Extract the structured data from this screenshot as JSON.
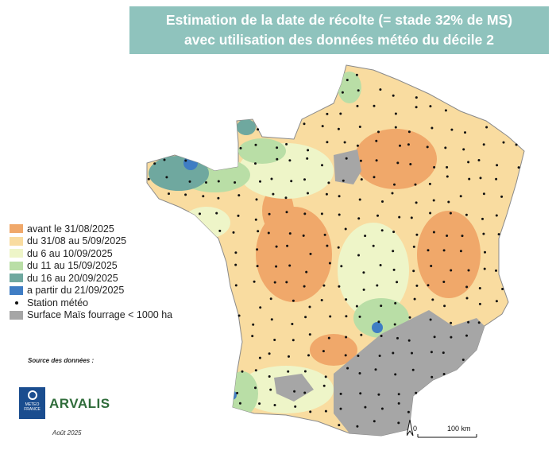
{
  "title": {
    "line1": "Estimation de la date de récolte (= stade 32% de MS)",
    "line2": "avec utilisation des données météo du décile 2"
  },
  "legend": {
    "items": [
      {
        "label": "avant le 31/08/2025",
        "color": "#f0a86a"
      },
      {
        "label": "du 31/08 au 5/09/2025",
        "color": "#f9dca0"
      },
      {
        "label": "du 6 au 10/09/2025",
        "color": "#eef5c8"
      },
      {
        "label": "du 11 au 15/09/2025",
        "color": "#b9dea6"
      },
      {
        "label": "du 16 au 20/09/2025",
        "color": "#6fa89f"
      },
      {
        "label": "a partir du 21/09/2025",
        "color": "#3f7dc4"
      }
    ],
    "station_label": "Station météo",
    "no_data_label": "Surface Maïs fourrage < 1000 ha",
    "no_data_color": "#a6a6a6"
  },
  "sources": {
    "label": "Source des données :",
    "meteo_france": "METEO FRANCE",
    "arvalis": "ARVALIS",
    "date": "Août 2025"
  },
  "scale_bar": {
    "start": "0",
    "end": "100 km"
  },
  "colors": {
    "title_bg": "#8fc3bd",
    "background": "#ffffff",
    "border": "#9e9e9e"
  }
}
